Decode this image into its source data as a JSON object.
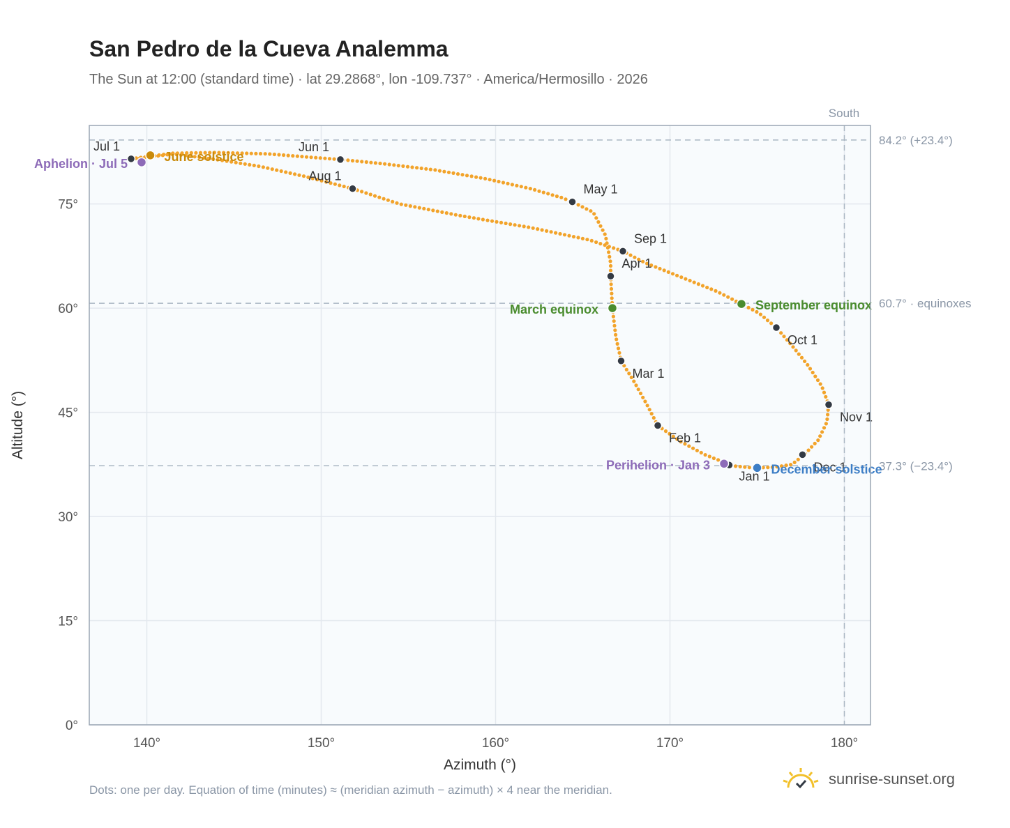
{
  "title": "San Pedro de la Cueva Analemma",
  "subtitle": "The Sun at 12:00 (standard time) · lat 29.2868°, lon -109.737° · America/Hermosillo · 2026",
  "footnote": "Dots: one per day. Equation of time (minutes) ≈ (meridian azimuth − azimuth) × 4 near the meridian.",
  "brand": "sunrise-sunset.org",
  "colors": {
    "curve": "#f2a32a",
    "marker": "#333a44",
    "june": "#c98a0a",
    "equinox": "#4a8c2e",
    "december": "#3d7ec6",
    "apsis": "#8d6bb8",
    "grid": "#e3e8ee",
    "ref": "#a9b6c2",
    "plot_bg": "#f8fbfd"
  },
  "chart_data": {
    "type": "scatter",
    "xlabel": "Azimuth (°)",
    "ylabel": "Altitude (°)",
    "xlim": [
      136.7,
      181.5
    ],
    "ylim": [
      0,
      86.3
    ],
    "xticks": [
      140,
      150,
      160,
      170,
      180
    ],
    "yticks": [
      0,
      15,
      30,
      45,
      60,
      75
    ],
    "xtick_labels": [
      "140°",
      "150°",
      "160°",
      "170°",
      "180°"
    ],
    "ytick_labels": [
      "0°",
      "15°",
      "30°",
      "45°",
      "60°",
      "75°"
    ],
    "south_label": "South",
    "south_azimuth": 180,
    "reference_lines": [
      {
        "altitude": 84.2,
        "label": "84.2° (+23.4°)"
      },
      {
        "altitude": 60.7,
        "label": "60.7° · equinoxes"
      },
      {
        "altitude": 37.3,
        "label": "37.3° (−23.4°)"
      }
    ],
    "path": [
      [
        173.5,
        37.3
      ],
      [
        174.8,
        37.0
      ],
      [
        176.0,
        37.1
      ],
      [
        177.0,
        37.5
      ],
      [
        177.7,
        38.9
      ],
      [
        178.5,
        41.0
      ],
      [
        179.0,
        43.6
      ],
      [
        179.1,
        46.1
      ],
      [
        178.7,
        48.8
      ],
      [
        177.9,
        51.8
      ],
      [
        177.0,
        54.6
      ],
      [
        176.1,
        57.2
      ],
      [
        175.1,
        59.3
      ],
      [
        174.1,
        60.6
      ],
      [
        172.7,
        62.4
      ],
      [
        170.7,
        64.4
      ],
      [
        168.6,
        66.5
      ],
      [
        167.3,
        68.2
      ],
      [
        165.4,
        69.8
      ],
      [
        162.0,
        71.6
      ],
      [
        158.0,
        73.3
      ],
      [
        154.5,
        75.0
      ],
      [
        151.8,
        77.2
      ],
      [
        149.0,
        79.0
      ],
      [
        146.5,
        80.4
      ],
      [
        144.0,
        81.4
      ],
      [
        141.5,
        82.2
      ],
      [
        139.7,
        81.6
      ],
      [
        139.1,
        81.5
      ],
      [
        141.5,
        82.3
      ],
      [
        144.0,
        82.4
      ],
      [
        147.0,
        82.2
      ],
      [
        149.5,
        81.7
      ],
      [
        151.1,
        81.4
      ],
      [
        153.5,
        80.8
      ],
      [
        156.5,
        79.9
      ],
      [
        159.5,
        78.6
      ],
      [
        162.0,
        77.2
      ],
      [
        163.8,
        75.9
      ],
      [
        164.4,
        75.3
      ],
      [
        165.6,
        73.8
      ],
      [
        166.3,
        70.5
      ],
      [
        166.6,
        66.5
      ],
      [
        166.6,
        64.6
      ],
      [
        166.7,
        60.0
      ],
      [
        166.9,
        55.8
      ],
      [
        167.2,
        52.4
      ],
      [
        167.9,
        49.6
      ],
      [
        168.7,
        46.0
      ],
      [
        169.3,
        43.1
      ],
      [
        170.6,
        40.8
      ],
      [
        172.0,
        38.9
      ],
      [
        173.5,
        37.4
      ]
    ],
    "month_markers": [
      {
        "label": "Jan 1",
        "azimuth": 173.4,
        "altitude": 37.4
      },
      {
        "label": "Feb 1",
        "azimuth": 169.3,
        "altitude": 43.1
      },
      {
        "label": "Mar 1",
        "azimuth": 167.2,
        "altitude": 52.4
      },
      {
        "label": "Apr 1",
        "azimuth": 166.6,
        "altitude": 64.6
      },
      {
        "label": "May 1",
        "azimuth": 164.4,
        "altitude": 75.3
      },
      {
        "label": "Jun 1",
        "azimuth": 151.1,
        "altitude": 81.4
      },
      {
        "label": "Jul 1",
        "azimuth": 139.1,
        "altitude": 81.5
      },
      {
        "label": "Aug 1",
        "azimuth": 151.8,
        "altitude": 77.2
      },
      {
        "label": "Sep 1",
        "azimuth": 167.3,
        "altitude": 68.2
      },
      {
        "label": "Oct 1",
        "azimuth": 176.1,
        "altitude": 57.2
      },
      {
        "label": "Nov 1",
        "azimuth": 179.1,
        "altitude": 46.1
      },
      {
        "label": "Dec 1",
        "azimuth": 177.6,
        "altitude": 38.9
      }
    ],
    "events": [
      {
        "label": "June solstice",
        "azimuth": 140.2,
        "altitude": 82.0,
        "color": "#c98a0a"
      },
      {
        "label": "Aphelion · Jul 5",
        "azimuth": 139.7,
        "altitude": 81.0,
        "color": "#8d6bb8"
      },
      {
        "label": "March equinox",
        "azimuth": 166.7,
        "altitude": 60.0,
        "color": "#4a8c2e"
      },
      {
        "label": "September equinox",
        "azimuth": 174.1,
        "altitude": 60.6,
        "color": "#4a8c2e"
      },
      {
        "label": "Perihelion · Jan 3",
        "azimuth": 173.1,
        "altitude": 37.6,
        "color": "#8d6bb8"
      },
      {
        "label": "December solstice",
        "azimuth": 175.0,
        "altitude": 37.0,
        "color": "#3d7ec6"
      }
    ]
  }
}
